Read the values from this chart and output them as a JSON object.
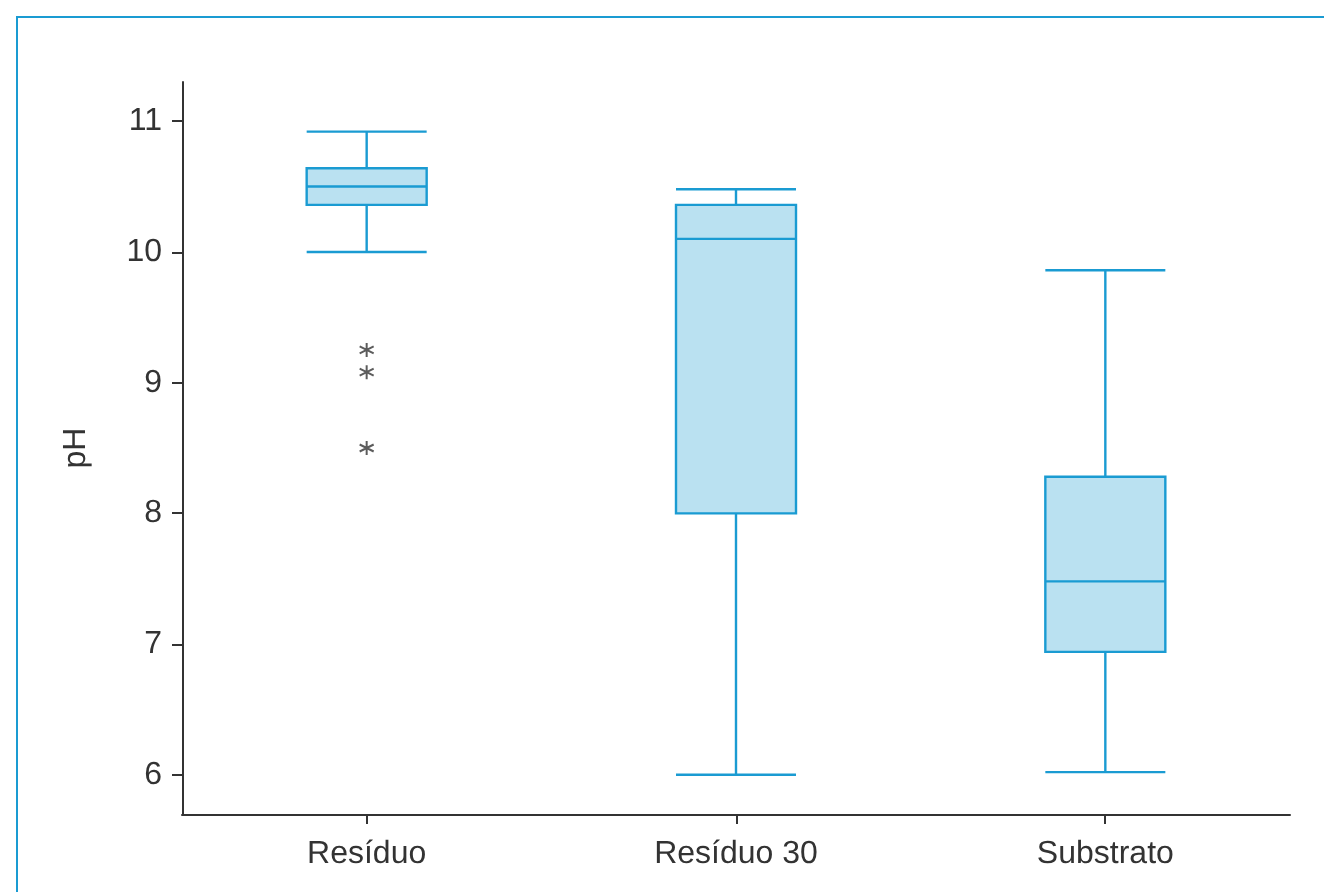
{
  "chart_data": {
    "type": "box",
    "ylabel": "pH",
    "categories": [
      "Resíduo",
      "Resíduo 30",
      "Substrato"
    ],
    "boxes": [
      {
        "low": 10.0,
        "q1": 10.36,
        "median": 10.5,
        "q3": 10.64,
        "high": 10.92,
        "outliers": [
          9.25,
          9.08,
          8.5
        ]
      },
      {
        "low": 6.0,
        "q1": 8.0,
        "median": 10.1,
        "q3": 10.36,
        "high": 10.48
      },
      {
        "low": 6.02,
        "q1": 6.94,
        "median": 7.48,
        "q3": 8.28,
        "high": 9.86
      }
    ],
    "color": "#1a9bd2",
    "ylim": [
      5.7,
      11.3
    ],
    "yticks": [
      6,
      7,
      8,
      9,
      10,
      11
    ],
    "grid": false
  }
}
